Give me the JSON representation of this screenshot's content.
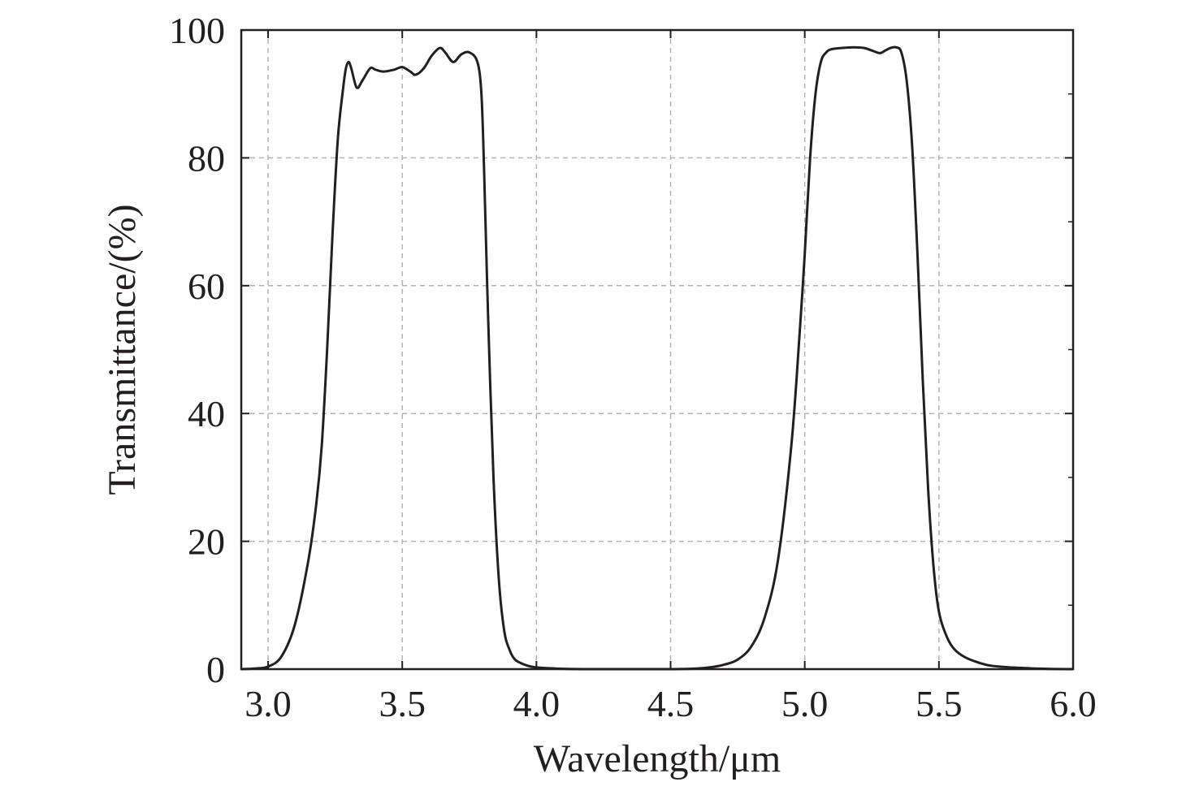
{
  "chart_data": {
    "type": "line",
    "title": "",
    "xlabel": "Wavelength/μm",
    "ylabel": "Transmittance/(%)",
    "xlim": [
      2.9,
      6.0
    ],
    "ylim": [
      0,
      100
    ],
    "xticks": [
      3.0,
      3.5,
      4.0,
      4.5,
      5.0,
      5.5,
      6.0
    ],
    "yticks": [
      0,
      20,
      40,
      60,
      80,
      100
    ],
    "x_tick_labels": [
      "3.0",
      "3.5",
      "4.0",
      "4.5",
      "5.0",
      "5.5",
      "6.0"
    ],
    "y_tick_labels": [
      "0",
      "20",
      "40",
      "60",
      "80",
      "100"
    ],
    "grid": true,
    "line_color": "#231f20",
    "grid_color": "#b3b3b3",
    "series": [
      {
        "x": [
          2.9,
          2.95,
          3.0,
          3.05,
          3.1,
          3.15,
          3.18,
          3.2,
          3.22,
          3.24,
          3.26,
          3.28,
          3.29,
          3.3,
          3.31,
          3.33,
          3.35,
          3.38,
          3.4,
          3.43,
          3.47,
          3.5,
          3.53,
          3.55,
          3.58,
          3.61,
          3.64,
          3.66,
          3.69,
          3.72,
          3.75,
          3.78,
          3.795,
          3.805,
          3.82,
          3.84,
          3.86,
          3.88,
          3.9,
          3.92,
          3.95,
          3.98,
          4.02,
          4.1,
          4.2,
          4.3,
          4.4,
          4.5,
          4.6,
          4.65,
          4.7,
          4.75,
          4.8,
          4.85,
          4.9,
          4.95,
          4.98,
          5.0,
          5.02,
          5.04,
          5.06,
          5.08,
          5.1,
          5.14,
          5.18,
          5.22,
          5.25,
          5.28,
          5.3,
          5.32,
          5.34,
          5.36,
          5.38,
          5.4,
          5.42,
          5.44,
          5.46,
          5.48,
          5.5,
          5.53,
          5.56,
          5.6,
          5.65,
          5.7,
          5.8,
          5.9,
          6.0
        ],
        "y": [
          0,
          0.1,
          0.4,
          2,
          7,
          17,
          26,
          35,
          50,
          68,
          83,
          91,
          94,
          95,
          94,
          91,
          92,
          94,
          93.8,
          93.5,
          93.8,
          94.2,
          93.5,
          93,
          94,
          96,
          97.2,
          96.5,
          95,
          96.2,
          96.5,
          95,
          90,
          78,
          55,
          30,
          14,
          6,
          3,
          1.5,
          0.8,
          0.4,
          0.2,
          0.05,
          0,
          0,
          0,
          0,
          0.1,
          0.3,
          0.7,
          1.5,
          3.5,
          8,
          17,
          35,
          52,
          65,
          80,
          90,
          95,
          96.5,
          97,
          97.2,
          97.3,
          97.2,
          96.8,
          96.4,
          96.8,
          97.2,
          97.3,
          96.5,
          92,
          82,
          65,
          45,
          28,
          16,
          9,
          5,
          3,
          1.8,
          1,
          0.5,
          0.2,
          0.05,
          0
        ]
      }
    ]
  }
}
